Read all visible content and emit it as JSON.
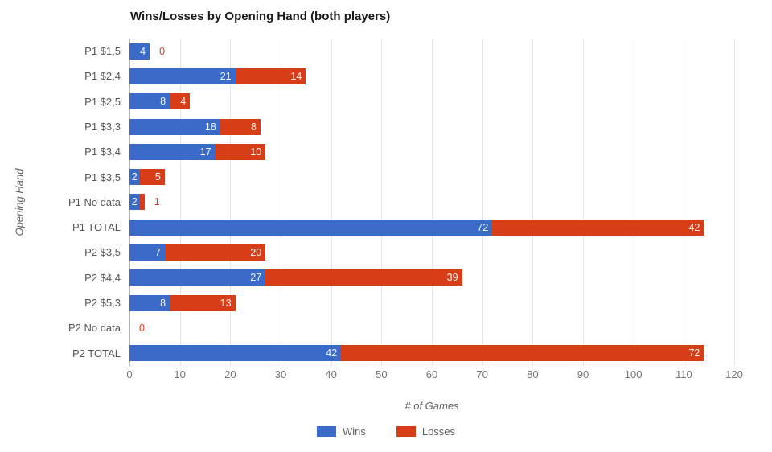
{
  "chart_data": {
    "type": "bar",
    "orientation": "horizontal",
    "stacked": true,
    "title": "Wins/Losses by Opening Hand (both players)",
    "xlabel": "# of Games",
    "ylabel": "Opening Hand",
    "xlim": [
      0,
      120
    ],
    "xticks": [
      0,
      10,
      20,
      30,
      40,
      50,
      60,
      70,
      80,
      90,
      100,
      110,
      120
    ],
    "grid": true,
    "legend_position": "bottom",
    "categories": [
      "P1 $1,5",
      "P1 $2,4",
      "P1 $2,5",
      "P1 $3,3",
      "P1 $3,4",
      "P1 $3,5",
      "P1 No data",
      "P1 TOTAL",
      "P2 $3,5",
      "P2 $4,4",
      "P2 $5,3",
      "P2 No data",
      "P2 TOTAL"
    ],
    "series": [
      {
        "name": "Wins",
        "color": "#3a6bc9",
        "values": [
          4,
          21,
          8,
          18,
          17,
          2,
          2,
          72,
          7,
          27,
          8,
          0,
          42
        ]
      },
      {
        "name": "Losses",
        "color": "#d73d17",
        "values": [
          0,
          14,
          4,
          8,
          10,
          5,
          1,
          42,
          20,
          39,
          13,
          0,
          72
        ]
      }
    ],
    "colors": {
      "inside_label": "#ffffff",
      "gridline": "#e6e6e6",
      "zero_line": "#b3b3b3",
      "title_text": "#1a1a1a",
      "category_text": "#555555",
      "tick_text": "#757575",
      "axis_title_text": "#616161"
    }
  }
}
